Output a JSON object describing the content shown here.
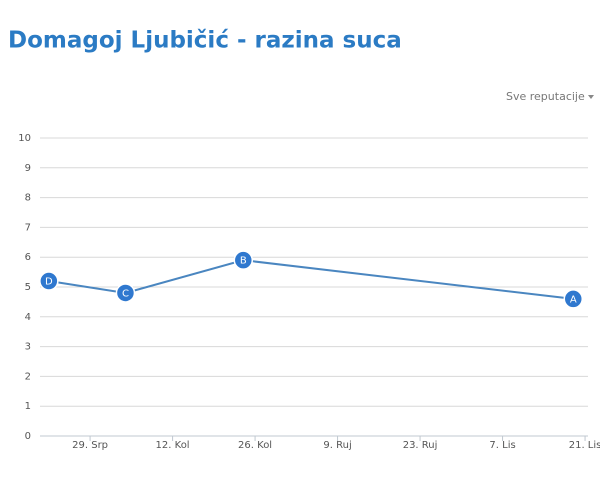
{
  "header": {
    "title": "Domagoj Ljubičić - razina suca",
    "filter": "Sve reputacije"
  },
  "chart_data": {
    "type": "line",
    "x": [
      -7,
      6,
      26,
      82
    ],
    "series": [
      {
        "name": "Razina",
        "color": "#4a86c0",
        "values": [
          5.2,
          4.8,
          5.9,
          4.6
        ],
        "point_labels": [
          "D",
          "C",
          "B",
          "A"
        ],
        "marker_color": "#2f78cf"
      }
    ],
    "xlim": [
      -8.5,
      84.5
    ],
    "xticks": [
      {
        "value": 0,
        "label": "29. Srp"
      },
      {
        "value": 14,
        "label": "12. Kol"
      },
      {
        "value": 28,
        "label": "26. Kol"
      },
      {
        "value": 42,
        "label": "9. Ruj"
      },
      {
        "value": 56,
        "label": "23. Ruj"
      },
      {
        "value": 70,
        "label": "7. Lis"
      },
      {
        "value": 84,
        "label": "21. Lis"
      }
    ],
    "ylim": [
      0,
      10
    ],
    "yticks": [
      0,
      1,
      2,
      3,
      4,
      5,
      6,
      7,
      8,
      9,
      10
    ],
    "grid": true
  }
}
